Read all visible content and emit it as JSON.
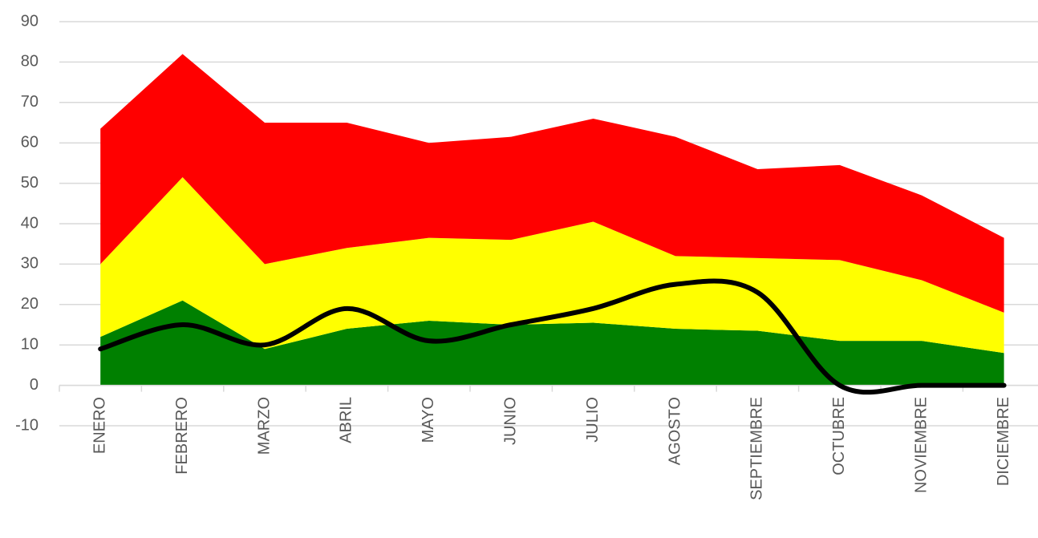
{
  "chart_data": {
    "type": "area",
    "stacked": true,
    "categories": [
      "ENERO",
      "FEBRERO",
      "MARZO",
      "ABRIL",
      "MAYO",
      "JUNIO",
      "JULIO",
      "AGOSTO",
      "SEPTIEMBRE",
      "OCTUBRE",
      "NOVIEMBRE",
      "DICIEMBRE"
    ],
    "series": [
      {
        "color": "#008000",
        "values": [
          12,
          21,
          9,
          14,
          16,
          15,
          15.5,
          14,
          13.5,
          11,
          11,
          8
        ]
      },
      {
        "color": "#ffff00",
        "values": [
          18,
          30.5,
          21,
          20,
          20.5,
          21,
          25,
          18,
          18,
          20,
          15,
          10
        ]
      },
      {
        "color": "#ff0000",
        "values": [
          33.5,
          30.5,
          35,
          31,
          23.5,
          25.5,
          25.5,
          29.5,
          22,
          23.5,
          21,
          18.5
        ]
      },
      {
        "type": "line",
        "smooth": true,
        "color": "#000000",
        "values": [
          9,
          15,
          10,
          19,
          11,
          15,
          19,
          25,
          23,
          0,
          0,
          0
        ]
      }
    ],
    "ylim": [
      -10,
      90
    ],
    "yticks": [
      -10,
      0,
      10,
      20,
      30,
      40,
      50,
      60,
      70,
      80,
      90
    ],
    "grid": true
  }
}
